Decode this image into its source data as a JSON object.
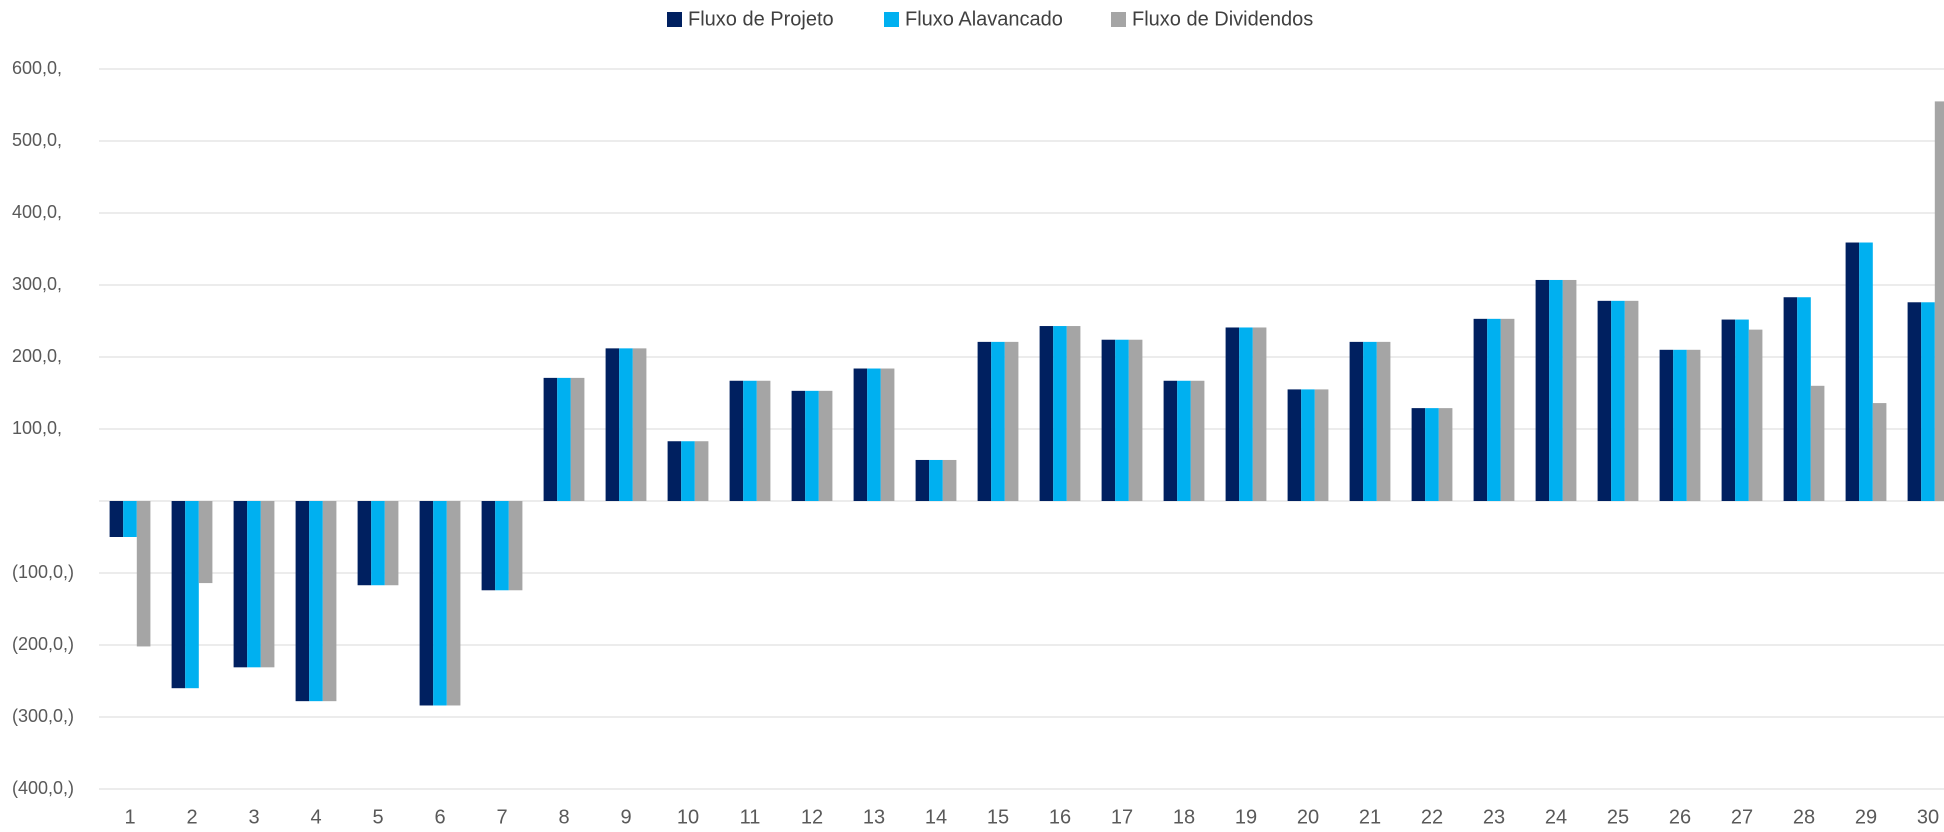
{
  "chart_data": {
    "type": "bar",
    "categories": [
      "1",
      "2",
      "3",
      "4",
      "5",
      "6",
      "7",
      "8",
      "9",
      "10",
      "11",
      "12",
      "13",
      "14",
      "15",
      "16",
      "17",
      "18",
      "19",
      "20",
      "21",
      "22",
      "23",
      "24",
      "25",
      "26",
      "27",
      "28",
      "29",
      "30"
    ],
    "series": [
      {
        "name": "Fluxo de Projeto",
        "color": "#002060",
        "values": [
          -50,
          -260,
          -231,
          -278,
          -117,
          -284,
          -124,
          171,
          212,
          83,
          167,
          153,
          184,
          57,
          221,
          243,
          224,
          167,
          241,
          155,
          221,
          129,
          253,
          307,
          278,
          210,
          252,
          283,
          359,
          276
        ]
      },
      {
        "name": "Fluxo Alavancado",
        "color": "#00b0f0",
        "values": [
          -50,
          -260,
          -231,
          -278,
          -117,
          -284,
          -124,
          171,
          212,
          83,
          167,
          153,
          184,
          57,
          221,
          243,
          224,
          167,
          241,
          155,
          221,
          129,
          253,
          307,
          278,
          210,
          252,
          283,
          359,
          276
        ]
      },
      {
        "name": "Fluxo de Dividendos",
        "color": "#a5a5a5",
        "values": [
          -202,
          -114,
          -231,
          -278,
          -117,
          -284,
          -124,
          171,
          212,
          83,
          167,
          153,
          184,
          57,
          221,
          243,
          224,
          167,
          241,
          155,
          221,
          129,
          253,
          307,
          278,
          210,
          238,
          160,
          136,
          555
        ]
      }
    ],
    "ylim": [
      -400,
      600
    ],
    "yticks": [
      {
        "value": -400,
        "label": "(400,0,)"
      },
      {
        "value": -300,
        "label": "(300,0,)"
      },
      {
        "value": -200,
        "label": "(200,0,)"
      },
      {
        "value": -100,
        "label": "(100,0,)"
      },
      {
        "value": 100,
        "label": "100,0,"
      },
      {
        "value": 200,
        "label": "200,0,"
      },
      {
        "value": 300,
        "label": "300,0,"
      },
      {
        "value": 400,
        "label": "400,0,"
      },
      {
        "value": 500,
        "label": "500,0,"
      },
      {
        "value": 600,
        "label": "600,0,"
      }
    ],
    "grid": true,
    "legend": "top"
  }
}
